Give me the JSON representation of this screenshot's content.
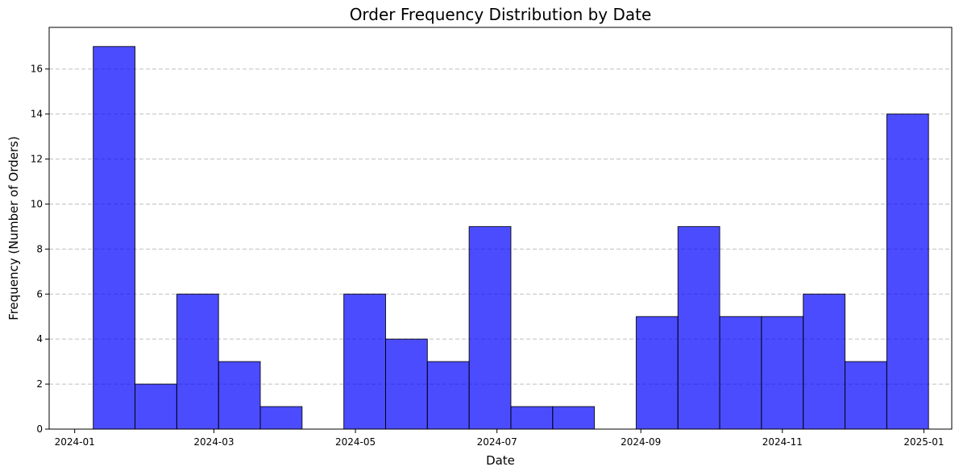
{
  "chart_data": {
    "type": "bar",
    "title": "Order Frequency Distribution by Date",
    "xlabel": "Date",
    "ylabel": "Frequency (Number of Orders)",
    "x_type": "date",
    "xlim": [
      "2023-12-21",
      "2025-01-13"
    ],
    "ylim": [
      0,
      17.85
    ],
    "x_ticks": [
      "2024-01",
      "2024-03",
      "2024-05",
      "2024-07",
      "2024-09",
      "2024-11",
      "2025-01"
    ],
    "x_tick_dates": [
      "2024-01-01",
      "2024-03-01",
      "2024-05-01",
      "2024-07-01",
      "2024-09-01",
      "2024-11-01",
      "2025-01-01"
    ],
    "y_ticks": [
      0,
      2,
      4,
      6,
      8,
      10,
      12,
      14,
      16
    ],
    "grid": {
      "y": true,
      "x": false,
      "style": "dashed"
    },
    "bar_color": "#0000ff",
    "bar_opacity": 0.7,
    "edge_color": "#000000",
    "bins": [
      {
        "start": "2024-01-09",
        "end": "2024-01-27",
        "value": 17
      },
      {
        "start": "2024-01-27",
        "end": "2024-02-14",
        "value": 2
      },
      {
        "start": "2024-02-14",
        "end": "2024-03-03",
        "value": 6
      },
      {
        "start": "2024-03-03",
        "end": "2024-03-21",
        "value": 3
      },
      {
        "start": "2024-03-21",
        "end": "2024-04-08",
        "value": 1
      },
      {
        "start": "2024-04-08",
        "end": "2024-04-26",
        "value": 0
      },
      {
        "start": "2024-04-26",
        "end": "2024-05-14",
        "value": 6
      },
      {
        "start": "2024-05-14",
        "end": "2024-06-01",
        "value": 4
      },
      {
        "start": "2024-06-01",
        "end": "2024-06-19",
        "value": 3
      },
      {
        "start": "2024-06-19",
        "end": "2024-07-07",
        "value": 9
      },
      {
        "start": "2024-07-07",
        "end": "2024-07-25",
        "value": 1
      },
      {
        "start": "2024-07-25",
        "end": "2024-08-12",
        "value": 1
      },
      {
        "start": "2024-08-12",
        "end": "2024-08-30",
        "value": 0
      },
      {
        "start": "2024-08-30",
        "end": "2024-09-17",
        "value": 5
      },
      {
        "start": "2024-09-17",
        "end": "2024-10-05",
        "value": 9
      },
      {
        "start": "2024-10-05",
        "end": "2024-10-23",
        "value": 5
      },
      {
        "start": "2024-10-23",
        "end": "2024-11-10",
        "value": 5
      },
      {
        "start": "2024-11-10",
        "end": "2024-11-28",
        "value": 6
      },
      {
        "start": "2024-11-28",
        "end": "2024-12-16",
        "value": 3
      },
      {
        "start": "2024-12-16",
        "end": "2025-01-03",
        "value": 14
      }
    ]
  }
}
